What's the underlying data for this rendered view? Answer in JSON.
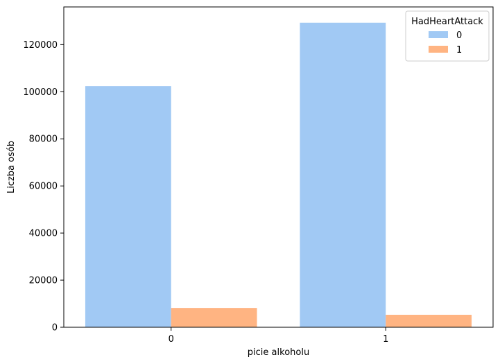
{
  "chart_data": {
    "type": "bar",
    "categories": [
      "0",
      "1"
    ],
    "xlabel": "picie alkoholu",
    "ylabel": "Liczba osób",
    "ylim": [
      0,
      136000
    ],
    "yticks": [
      0,
      20000,
      40000,
      60000,
      80000,
      100000,
      120000
    ],
    "ytick_labels": [
      "0",
      "20000",
      "40000",
      "60000",
      "80000",
      "100000",
      "120000"
    ],
    "grid": false,
    "legend": {
      "title": "HadHeartAttack",
      "placement": "top-right"
    },
    "series": [
      {
        "name": "0",
        "color": "#a1c9f4",
        "values": [
          102400,
          129300
        ]
      },
      {
        "name": "1",
        "color": "#ffb482",
        "values": [
          8200,
          5300
        ]
      }
    ]
  }
}
